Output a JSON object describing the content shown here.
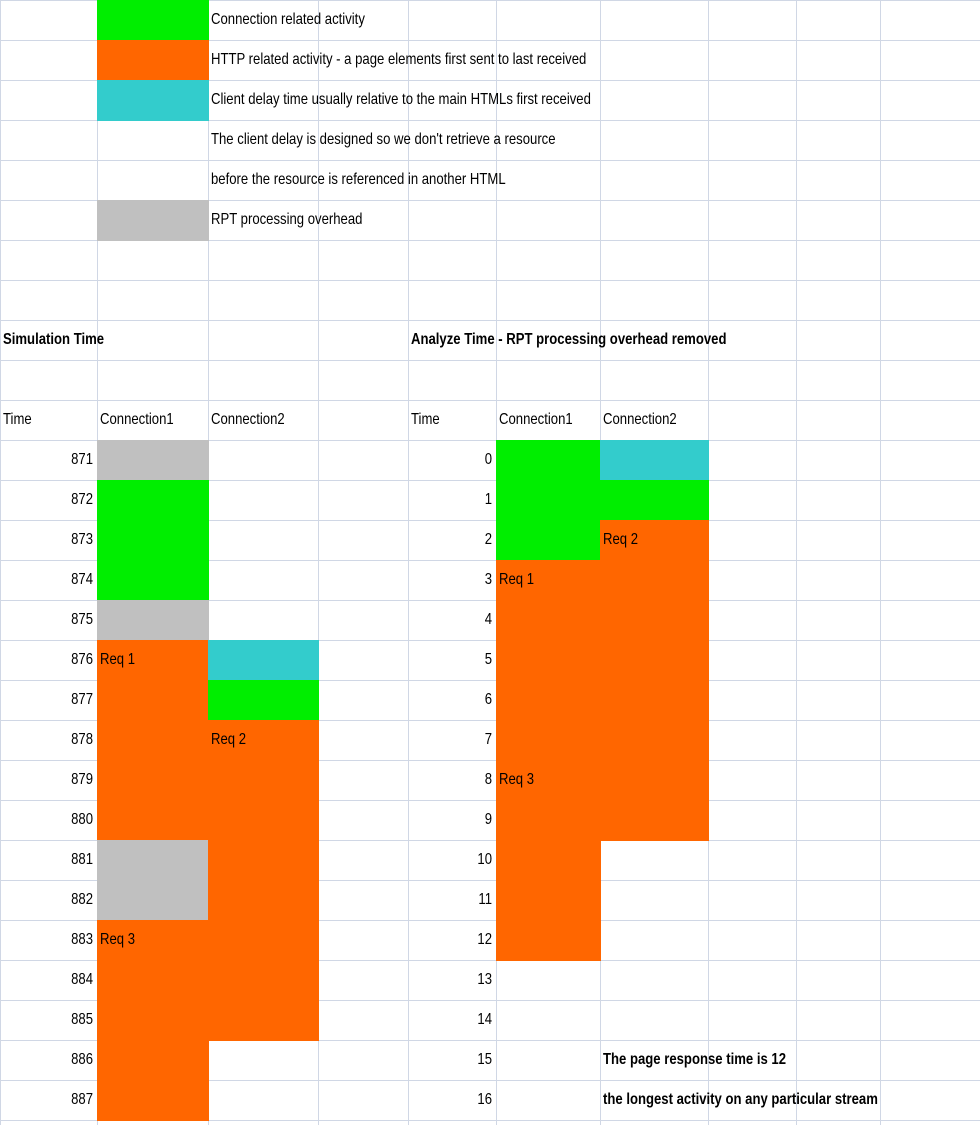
{
  "legend": [
    {
      "color": "#00ee00",
      "text": "Connection related activity"
    },
    {
      "color": "#ff6600",
      "text": "HTTP related activity - a page elements first sent to last received"
    },
    {
      "color": "#33cccc",
      "text": "Client delay time usually relative to the main HTMLs first received"
    },
    {
      "color": null,
      "text": "The client delay is designed so we don't retrieve a resource"
    },
    {
      "color": null,
      "text": "before the resource is referenced in another HTML"
    },
    {
      "color": "#c0c0c0",
      "text": "RPT processing overhead"
    }
  ],
  "simulation": {
    "title": "Simulation Time",
    "headers": [
      "Time",
      "Connection1",
      "Connection2"
    ],
    "rows": [
      {
        "time": 871,
        "fills": [
          "#c0c0c0",
          null
        ],
        "labels": [
          null,
          null
        ]
      },
      {
        "time": 872,
        "fills": [
          "#00ee00",
          null
        ],
        "labels": [
          null,
          null
        ]
      },
      {
        "time": 873,
        "fills": [
          "#00ee00",
          null
        ],
        "labels": [
          null,
          null
        ]
      },
      {
        "time": 874,
        "fills": [
          "#00ee00",
          null
        ],
        "labels": [
          null,
          null
        ]
      },
      {
        "time": 875,
        "fills": [
          "#c0c0c0",
          null
        ],
        "labels": [
          null,
          null
        ]
      },
      {
        "time": 876,
        "fills": [
          "#ff6600",
          "#33cccc"
        ],
        "labels": [
          "Req 1",
          null
        ]
      },
      {
        "time": 877,
        "fills": [
          "#ff6600",
          "#00ee00"
        ],
        "labels": [
          null,
          null
        ]
      },
      {
        "time": 878,
        "fills": [
          "#ff6600",
          "#ff6600"
        ],
        "labels": [
          null,
          "Req 2"
        ]
      },
      {
        "time": 879,
        "fills": [
          "#ff6600",
          "#ff6600"
        ],
        "labels": [
          null,
          null
        ]
      },
      {
        "time": 880,
        "fills": [
          "#ff6600",
          "#ff6600"
        ],
        "labels": [
          null,
          null
        ]
      },
      {
        "time": 881,
        "fills": [
          "#c0c0c0",
          "#ff6600"
        ],
        "labels": [
          null,
          null
        ]
      },
      {
        "time": 882,
        "fills": [
          "#c0c0c0",
          "#ff6600"
        ],
        "labels": [
          null,
          null
        ]
      },
      {
        "time": 883,
        "fills": [
          "#ff6600",
          "#ff6600"
        ],
        "labels": [
          "Req 3",
          null
        ]
      },
      {
        "time": 884,
        "fills": [
          "#ff6600",
          "#ff6600"
        ],
        "labels": [
          null,
          null
        ]
      },
      {
        "time": 885,
        "fills": [
          "#ff6600",
          "#ff6600"
        ],
        "labels": [
          null,
          null
        ]
      },
      {
        "time": 886,
        "fills": [
          "#ff6600",
          null
        ],
        "labels": [
          null,
          null
        ]
      },
      {
        "time": 887,
        "fills": [
          "#ff6600",
          null
        ],
        "labels": [
          null,
          null
        ]
      }
    ]
  },
  "analyze": {
    "title": "Analyze Time - RPT processing overhead removed",
    "headers": [
      "Time",
      "Connection1",
      "Connection2"
    ],
    "rows": [
      {
        "time": 0,
        "fills": [
          "#00ee00",
          "#33cccc"
        ],
        "labels": [
          null,
          null
        ]
      },
      {
        "time": 1,
        "fills": [
          "#00ee00",
          "#00ee00"
        ],
        "labels": [
          null,
          null
        ]
      },
      {
        "time": 2,
        "fills": [
          "#00ee00",
          "#ff6600"
        ],
        "labels": [
          null,
          "Req 2"
        ]
      },
      {
        "time": 3,
        "fills": [
          "#ff6600",
          "#ff6600"
        ],
        "labels": [
          "Req 1",
          null
        ]
      },
      {
        "time": 4,
        "fills": [
          "#ff6600",
          "#ff6600"
        ],
        "labels": [
          null,
          null
        ]
      },
      {
        "time": 5,
        "fills": [
          "#ff6600",
          "#ff6600"
        ],
        "labels": [
          null,
          null
        ]
      },
      {
        "time": 6,
        "fills": [
          "#ff6600",
          "#ff6600"
        ],
        "labels": [
          null,
          null
        ]
      },
      {
        "time": 7,
        "fills": [
          "#ff6600",
          "#ff6600"
        ],
        "labels": [
          null,
          null
        ]
      },
      {
        "time": 8,
        "fills": [
          "#ff6600",
          "#ff6600"
        ],
        "labels": [
          "Req 3",
          null
        ]
      },
      {
        "time": 9,
        "fills": [
          "#ff6600",
          "#ff6600"
        ],
        "labels": [
          null,
          null
        ]
      },
      {
        "time": 10,
        "fills": [
          "#ff6600",
          null
        ],
        "labels": [
          null,
          null
        ]
      },
      {
        "time": 11,
        "fills": [
          "#ff6600",
          null
        ],
        "labels": [
          null,
          null
        ]
      },
      {
        "time": 12,
        "fills": [
          "#ff6600",
          null
        ],
        "labels": [
          null,
          null
        ]
      },
      {
        "time": 13,
        "fills": [
          null,
          null
        ],
        "labels": [
          null,
          null
        ]
      },
      {
        "time": 14,
        "fills": [
          null,
          null
        ],
        "labels": [
          null,
          null
        ]
      },
      {
        "time": 15,
        "fills": [
          null,
          null
        ],
        "labels": [
          null,
          null
        ]
      },
      {
        "time": 16,
        "fills": [
          null,
          null
        ],
        "labels": [
          null,
          null
        ]
      }
    ],
    "notes": [
      "The page response time is 12",
      "the longest activity on any particular stream"
    ]
  }
}
